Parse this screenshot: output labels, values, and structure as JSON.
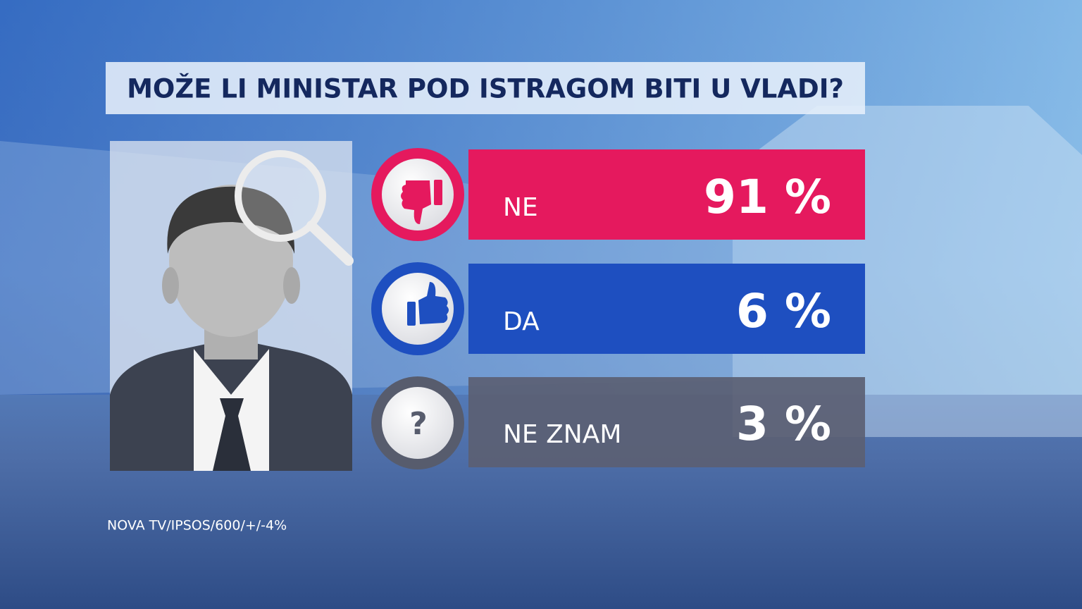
{
  "header": {
    "title": "MOŽE LI MINISTAR POD ISTRAGOM BITI U VLADI?"
  },
  "results": [
    {
      "label": "NE",
      "value": "91 %"
    },
    {
      "label": "DA",
      "value": "6 %"
    },
    {
      "label": "NE ZNAM",
      "value": "3 %",
      "icon": "?"
    }
  ],
  "source": "NOVA TV/IPSOS/600/+/-4%"
}
